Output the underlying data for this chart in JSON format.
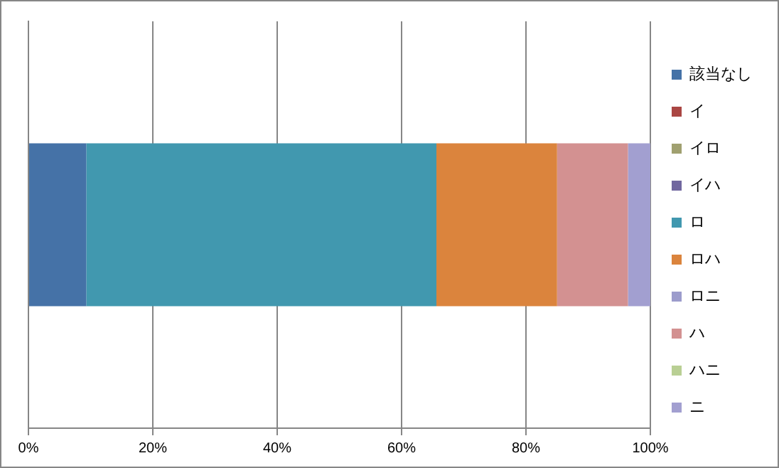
{
  "chart_data": {
    "type": "bar",
    "orientation": "horizontal",
    "stacked": true,
    "categories": [
      null
    ],
    "series": [
      {
        "name": "該当なし",
        "color": "#4572a7",
        "values": [
          9.3
        ]
      },
      {
        "name": "イ",
        "color": "#aa4643",
        "values": [
          0
        ]
      },
      {
        "name": "イロ",
        "color": "#a0a070",
        "values": [
          0
        ]
      },
      {
        "name": "イハ",
        "color": "#71679f",
        "values": [
          0
        ]
      },
      {
        "name": "ロ",
        "color": "#4198af",
        "values": [
          56.3
        ]
      },
      {
        "name": "ロハ",
        "color": "#db843d",
        "values": [
          19.4
        ]
      },
      {
        "name": "ロニ",
        "color": "#9c9ccc",
        "values": [
          0
        ]
      },
      {
        "name": "ハ",
        "color": "#d39191",
        "values": [
          11.4
        ]
      },
      {
        "name": "ハニ",
        "color": "#b9cf94",
        "values": [
          0
        ]
      },
      {
        "name": "ニ",
        "color": "#a29fd0",
        "values": [
          3.6
        ]
      }
    ],
    "xlim": [
      0,
      100
    ],
    "xticks": [
      {
        "value": 0,
        "label": "0%"
      },
      {
        "value": 20,
        "label": "20%"
      },
      {
        "value": 40,
        "label": "40%"
      },
      {
        "value": 60,
        "label": "60%"
      },
      {
        "value": 80,
        "label": "80%"
      },
      {
        "value": 100,
        "label": "100%"
      }
    ],
    "grid": "x",
    "legend": "right"
  }
}
